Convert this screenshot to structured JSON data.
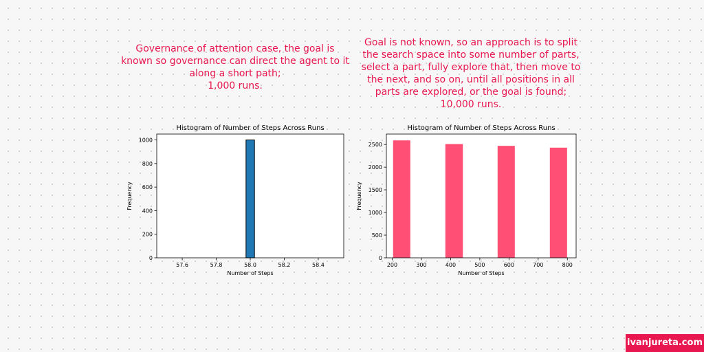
{
  "captions": {
    "left": [
      "Governance of attention case, the goal is",
      "known so governance can direct the agent to it",
      "along a short path;",
      "1,000 runs."
    ],
    "right": [
      "Goal is not known, so an approach is to split",
      "the search space into some number of parts,",
      "select a part, fully explore that, then move to",
      "the next, and so on, until all positions in all",
      "parts are explored, or the goal is found;",
      "10,000 runs."
    ]
  },
  "chart_data": [
    {
      "type": "bar",
      "title": "Histogram of Number of Steps Across Runs",
      "xlabel": "Number of Steps",
      "ylabel": "Frequency",
      "xlim": [
        57.45,
        58.55
      ],
      "ylim": [
        0,
        1050
      ],
      "xticks": [
        57.6,
        57.8,
        58.0,
        58.2,
        58.4
      ],
      "xtick_labels": [
        "57.6",
        "57.8",
        "58.0",
        "58.2",
        "58.4"
      ],
      "yticks": [
        0,
        200,
        400,
        600,
        800,
        1000
      ],
      "ytick_labels": [
        "0",
        "200",
        "400",
        "600",
        "800",
        "1000"
      ],
      "bins": [
        {
          "x0": 57.975,
          "x1": 58.025,
          "value": 1000
        }
      ],
      "color": "#1f77b4",
      "edge_color": "#000000"
    },
    {
      "type": "bar",
      "title": "Histogram of Number of Steps Across Runs",
      "xlabel": "Number of Steps",
      "ylabel": "Frequency",
      "xlim": [
        180,
        830
      ],
      "ylim": [
        0,
        2730
      ],
      "xticks": [
        200,
        300,
        400,
        500,
        600,
        700,
        800
      ],
      "xtick_labels": [
        "200",
        "300",
        "400",
        "500",
        "600",
        "700",
        "800"
      ],
      "yticks": [
        0,
        500,
        1000,
        1500,
        2000,
        2500
      ],
      "ytick_labels": [
        "0",
        "500",
        "1000",
        "1500",
        "2000",
        "2500"
      ],
      "bins": [
        {
          "x0": 203,
          "x1": 262,
          "value": 2590
        },
        {
          "x0": 382,
          "x1": 442,
          "value": 2510
        },
        {
          "x0": 561,
          "x1": 620,
          "value": 2470
        },
        {
          "x0": 740,
          "x1": 799,
          "value": 2430
        }
      ],
      "color": "#ff4f74",
      "edge_color": "none"
    }
  ],
  "footer": {
    "site": "ivanjureta.com",
    "color": "#e8174f"
  }
}
